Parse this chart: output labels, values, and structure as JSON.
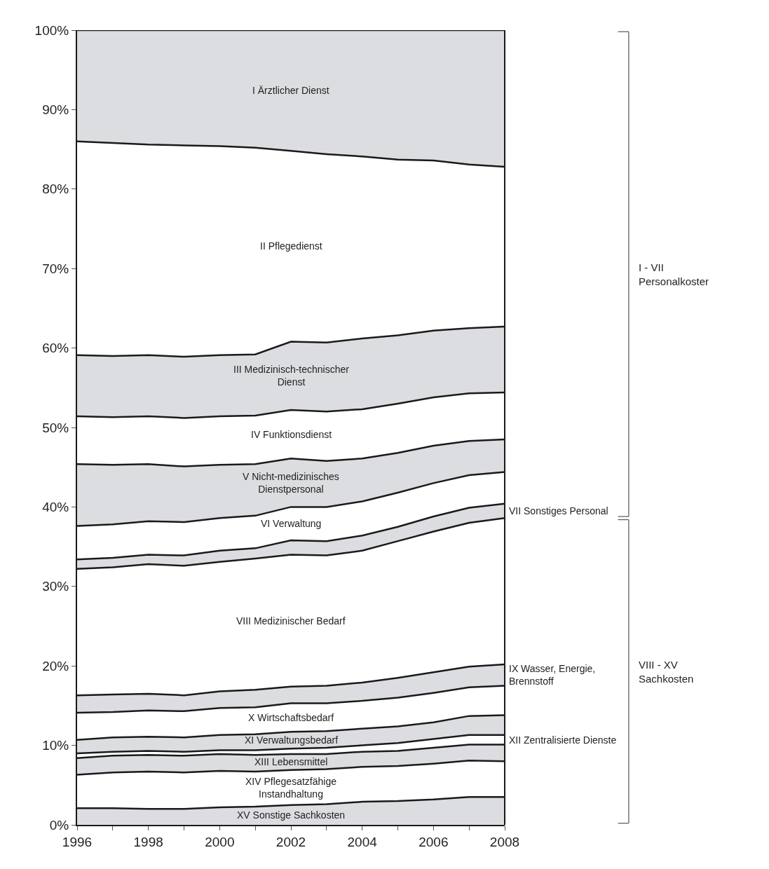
{
  "chart_data": {
    "type": "area",
    "stacked": true,
    "x": [
      1996,
      1997,
      1998,
      1999,
      2000,
      2001,
      2002,
      2003,
      2004,
      2005,
      2006,
      2007,
      2008
    ],
    "series": [
      {
        "name": "XV Sonstige Sachkosten",
        "color": "#dcdde0",
        "values": [
          2.1,
          2.1,
          2.0,
          2.0,
          2.2,
          2.3,
          2.5,
          2.6,
          2.9,
          3.0,
          3.2,
          3.5,
          3.5
        ]
      },
      {
        "name": "XIV Pflegesatzfähige\nInstandhaltung",
        "color": "#ffffff",
        "values": [
          4.2,
          4.5,
          4.7,
          4.6,
          4.6,
          4.4,
          4.4,
          4.4,
          4.4,
          4.4,
          4.5,
          4.6,
          4.5
        ]
      },
      {
        "name": "XIII Lebensmittel",
        "color": "#dcdde0",
        "values": [
          2.1,
          2.1,
          2.1,
          2.1,
          2.1,
          2.1,
          2.0,
          1.9,
          1.9,
          1.9,
          2.0,
          2.0,
          2.1
        ]
      },
      {
        "name": "XII Zentralisierte Dienste",
        "color": "#ffffff",
        "values": [
          0.6,
          0.5,
          0.5,
          0.5,
          0.5,
          0.6,
          0.7,
          0.8,
          0.8,
          1.0,
          1.1,
          1.2,
          1.2
        ]
      },
      {
        "name": "XI Verwaltungsbedarf",
        "color": "#dcdde0",
        "values": [
          1.7,
          1.8,
          1.8,
          1.8,
          1.9,
          2.0,
          2.1,
          2.1,
          2.1,
          2.1,
          2.1,
          2.4,
          2.5
        ]
      },
      {
        "name": "X Wirtschaftsbedarf",
        "color": "#ffffff",
        "values": [
          3.4,
          3.2,
          3.3,
          3.3,
          3.4,
          3.4,
          3.6,
          3.5,
          3.5,
          3.6,
          3.7,
          3.6,
          3.7
        ]
      },
      {
        "name": "IX Wasser, Energie,\nBrennstoff",
        "color": "#dcdde0",
        "values": [
          2.2,
          2.2,
          2.1,
          2.0,
          2.1,
          2.2,
          2.1,
          2.2,
          2.3,
          2.5,
          2.6,
          2.6,
          2.7
        ]
      },
      {
        "name": "VIII Medizinischer Bedarf",
        "color": "#ffffff",
        "values": [
          15.9,
          16.0,
          16.3,
          16.3,
          16.3,
          16.5,
          16.6,
          16.4,
          16.6,
          17.2,
          17.7,
          18.1,
          18.4
        ]
      },
      {
        "name": "VII Sonstiges Personal",
        "color": "#dcdde0",
        "values": [
          1.2,
          1.2,
          1.2,
          1.3,
          1.4,
          1.3,
          1.8,
          1.8,
          1.9,
          1.8,
          1.9,
          1.9,
          1.8
        ]
      },
      {
        "name": "VI Verwaltung",
        "color": "#ffffff",
        "values": [
          4.2,
          4.2,
          4.2,
          4.2,
          4.1,
          4.1,
          4.2,
          4.3,
          4.3,
          4.3,
          4.2,
          4.1,
          4.0
        ]
      },
      {
        "name": "V Nicht-medizinisches\nDienstpersonal",
        "color": "#dcdde0",
        "values": [
          7.8,
          7.5,
          7.2,
          7.0,
          6.7,
          6.5,
          6.1,
          5.8,
          5.4,
          5.0,
          4.7,
          4.3,
          4.1
        ]
      },
      {
        "name": "IV Funktionsdienst",
        "color": "#ffffff",
        "values": [
          6.0,
          6.0,
          6.0,
          6.1,
          6.1,
          6.1,
          6.1,
          6.2,
          6.2,
          6.2,
          6.1,
          6.0,
          5.9
        ]
      },
      {
        "name": "III Medizinisch-technischer\nDienst",
        "color": "#dcdde0",
        "values": [
          7.7,
          7.7,
          7.7,
          7.7,
          7.7,
          7.7,
          8.6,
          8.7,
          8.9,
          8.6,
          8.4,
          8.2,
          8.3
        ]
      },
      {
        "name": "II Pflegedienst",
        "color": "#ffffff",
        "values": [
          26.9,
          26.8,
          26.5,
          26.6,
          26.3,
          26.0,
          24.0,
          23.7,
          22.9,
          22.1,
          21.4,
          20.6,
          20.1
        ]
      },
      {
        "name": "I Ärztlicher Dienst",
        "color": "#dcdde0",
        "values": [
          14.0,
          14.2,
          14.4,
          14.5,
          14.6,
          14.8,
          15.2,
          15.6,
          15.9,
          16.3,
          16.4,
          16.9,
          17.2
        ]
      }
    ],
    "xlim": [
      1996,
      2008
    ],
    "xticks": [
      1996,
      {
        "value": 1997,
        "label": null
      },
      1998,
      {
        "value": 1999,
        "label": null
      },
      2000,
      {
        "value": 2001,
        "label": null
      },
      2002,
      {
        "value": 2003,
        "label": null
      },
      2004,
      {
        "value": 2005,
        "label": null
      },
      2006,
      {
        "value": 2007,
        "label": null
      },
      2008
    ],
    "ylim": [
      0,
      100
    ],
    "yticks": [
      {
        "value": 0,
        "label": "0%"
      },
      {
        "value": 10,
        "label": "10%"
      },
      {
        "value": 20,
        "label": "20%"
      },
      {
        "value": 30,
        "label": "30%"
      },
      {
        "value": 40,
        "label": "40%"
      },
      {
        "value": 50,
        "label": "50%"
      },
      {
        "value": 60,
        "label": "60%"
      },
      {
        "value": 70,
        "label": "70%"
      },
      {
        "value": 80,
        "label": "80%"
      },
      {
        "value": 90,
        "label": "90%"
      },
      {
        "value": 100,
        "label": "100%"
      }
    ],
    "annotations": [
      "VIII - XV\nSachkosten",
      "I - VII\nPersonalkoster"
    ]
  }
}
